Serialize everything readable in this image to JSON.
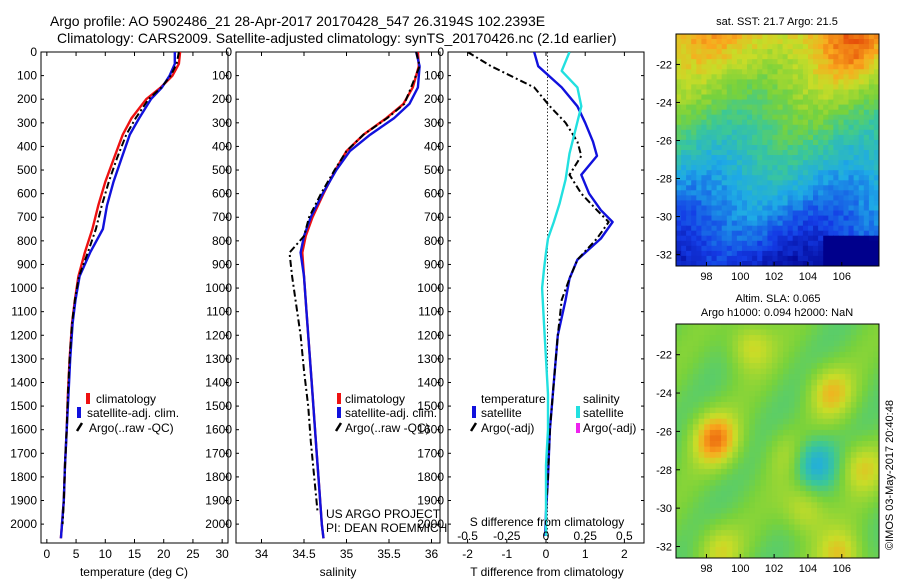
{
  "header": {
    "line1": "Argo profile: AO 5902486_21 28-Apr-2017 20170428_547 26.3194S 102.2393E",
    "line2": "Climatology: CARS2009. Satellite-adjusted climatology: synTS_20170426.nc (2.1d earlier)"
  },
  "footer_stamp": "©IMOS 03-May-2017 20:40:48",
  "colors": {
    "climatology": "#ee1111",
    "satellite": "#1111dd",
    "argo": "#000000",
    "salinity_satellite": "#22e0e0",
    "salinity_argo": "#ee22ee"
  },
  "chart_data": [
    {
      "type": "line",
      "name": "temperature-profile",
      "xlabel": "temperature (deg C)",
      "ylabel": "",
      "xlim": [
        -1,
        31
      ],
      "ylim": [
        2080,
        0
      ],
      "xticks": [
        0,
        5,
        10,
        15,
        20,
        25,
        30
      ],
      "yticks": [
        0,
        100,
        200,
        300,
        400,
        500,
        600,
        700,
        800,
        900,
        1000,
        1100,
        1200,
        1300,
        1400,
        1500,
        1600,
        1700,
        1800,
        1900,
        2000
      ],
      "legend_position": "lower-center",
      "legend": [
        "climatology",
        "satellite-adj. clim.",
        "Argo(..raw -QC)"
      ],
      "series": [
        {
          "name": "climatology",
          "color_key": "climatology",
          "x": [
            22.8,
            22.6,
            21.5,
            19.5,
            17,
            14.5,
            13,
            11.5,
            10,
            8.8,
            7.8,
            6.5,
            5.4,
            4.8,
            4.3,
            3.9,
            3.6,
            3.4,
            3.1,
            2.9,
            2.6,
            2.4
          ],
          "y": [
            0,
            50,
            100,
            150,
            200,
            280,
            350,
            450,
            550,
            650,
            750,
            850,
            950,
            1050,
            1150,
            1300,
            1450,
            1600,
            1750,
            1900,
            2000,
            2060
          ]
        },
        {
          "name": "satellite-adj. clim.",
          "color_key": "satellite",
          "x": [
            21.9,
            21.9,
            21,
            19.7,
            17.8,
            15.8,
            14.2,
            12.8,
            11.4,
            10.3,
            9.6,
            7.4,
            5.6,
            4.9,
            4.4,
            4,
            3.7,
            3.4,
            3.1,
            2.9,
            2.6,
            2.4
          ],
          "y": [
            0,
            50,
            100,
            150,
            200,
            280,
            350,
            450,
            550,
            650,
            750,
            850,
            950,
            1050,
            1150,
            1300,
            1450,
            1600,
            1750,
            1900,
            2000,
            2060
          ]
        },
        {
          "name": "Argo(..raw -QC)",
          "color_key": "argo",
          "dash": "dashdot",
          "x": [
            22.6,
            22.2,
            21.2,
            19.6,
            17.4,
            15.2,
            13.6,
            12,
            10.6,
            9.4,
            8.4,
            7,
            5.5,
            4.8,
            4.3,
            3.9,
            3.6,
            3.4,
            3.1,
            2.9,
            2.7
          ],
          "y": [
            0,
            50,
            100,
            150,
            200,
            280,
            350,
            450,
            550,
            650,
            750,
            850,
            950,
            1050,
            1150,
            1300,
            1450,
            1600,
            1750,
            1900,
            2000
          ]
        }
      ]
    },
    {
      "type": "line",
      "name": "salinity-profile",
      "xlabel": "salinity",
      "xlim": [
        33.7,
        36.1
      ],
      "ylim": [
        2080,
        0
      ],
      "xticks": [
        34,
        34.5,
        35,
        35.5,
        36
      ],
      "legend_position": "lower-center",
      "legend": [
        "climatology",
        "satellite-adj. clim.",
        "Argo(..raw -QC)"
      ],
      "annotation": [
        "US ARGO PROJECT",
        "PI: DEAN ROEMMICH"
      ],
      "series": [
        {
          "name": "climatology",
          "color_key": "climatology",
          "x": [
            35.84,
            35.85,
            35.78,
            35.67,
            35.47,
            35.2,
            35.0,
            34.87,
            34.73,
            34.6,
            34.52,
            34.48,
            34.5,
            34.53,
            34.56,
            34.59,
            34.62,
            34.65,
            34.68,
            34.71,
            34.73
          ],
          "y": [
            0,
            60,
            150,
            220,
            280,
            350,
            420,
            500,
            600,
            700,
            780,
            850,
            950,
            1100,
            1250,
            1400,
            1550,
            1700,
            1850,
            2000,
            2060
          ]
        },
        {
          "name": "satellite-adj. clim.",
          "color_key": "satellite",
          "x": [
            35.82,
            35.86,
            35.84,
            35.74,
            35.56,
            35.28,
            35.04,
            34.88,
            34.72,
            34.58,
            34.5,
            34.46,
            34.5,
            34.53,
            34.56,
            34.59,
            34.62,
            34.65,
            34.68,
            34.71,
            34.73
          ],
          "y": [
            0,
            60,
            150,
            220,
            280,
            350,
            420,
            500,
            600,
            700,
            780,
            850,
            950,
            1100,
            1250,
            1400,
            1550,
            1700,
            1850,
            2000,
            2060
          ]
        },
        {
          "name": "Argo(..raw -QC)",
          "color_key": "argo",
          "dash": "dashdot",
          "x": [
            35.82,
            35.86,
            35.76,
            35.68,
            35.48,
            35.2,
            35.0,
            34.86,
            34.7,
            34.56,
            34.5,
            34.33,
            34.36,
            34.4,
            34.46,
            34.5,
            34.55,
            34.58,
            34.62,
            34.66
          ],
          "y": [
            0,
            60,
            150,
            220,
            280,
            350,
            420,
            500,
            600,
            700,
            780,
            850,
            950,
            1050,
            1200,
            1350,
            1500,
            1650,
            1800,
            1950
          ]
        }
      ]
    },
    {
      "type": "line",
      "name": "difference-profile",
      "xlabel": "T difference from climatology",
      "xlabel_top": "S difference from climatology",
      "xlim": [
        -2.5,
        2.5
      ],
      "ylim": [
        2080,
        0
      ],
      "xticks": [
        -2,
        -1,
        0,
        1,
        2
      ],
      "top_xticks": [
        -0.5,
        -0.25,
        0,
        0.25,
        0.5
      ],
      "legend_position": "lower-center",
      "legend_headers": [
        "temperature",
        "salinity"
      ],
      "legend": [
        {
          "label": "satellite",
          "color_key": "satellite"
        },
        {
          "label": "Argo(-adj)",
          "color_key": "argo"
        },
        {
          "label": "satellite",
          "color_key": "salinity_satellite"
        },
        {
          "label": "Argo(-adj)",
          "color_key": "salinity_argo"
        }
      ],
      "series": [
        {
          "name": "T satellite",
          "color_key": "satellite",
          "x": [
            -0.3,
            -0.2,
            0.4,
            0.8,
            1.0,
            1.2,
            1.3,
            0.9,
            1.1,
            1.4,
            1.7,
            1.4,
            0.8,
            0.6,
            0.5,
            0.3,
            0.2,
            0.1,
            0.05,
            0.0,
            -0.02
          ],
          "y": [
            0,
            60,
            150,
            230,
            300,
            380,
            440,
            520,
            600,
            670,
            720,
            790,
            880,
            960,
            1050,
            1200,
            1400,
            1600,
            1800,
            1950,
            2050
          ]
        },
        {
          "name": "T Argo(-adj)",
          "color_key": "argo",
          "dash": "dashdot",
          "x": [
            -2.0,
            -1.4,
            -0.3,
            0.1,
            0.5,
            0.8,
            0.9,
            0.6,
            0.9,
            1.3,
            1.6,
            1.3,
            0.8,
            0.6,
            0.4,
            0.3,
            0.2,
            0.1,
            0.05,
            0.0
          ],
          "y": [
            0,
            60,
            150,
            230,
            300,
            380,
            440,
            520,
            600,
            670,
            720,
            790,
            880,
            960,
            1050,
            1200,
            1400,
            1600,
            1800,
            1950
          ]
        },
        {
          "name": "S satellite",
          "color_key": "salinity_satellite",
          "x": [
            0.6,
            0.4,
            0.8,
            0.9,
            0.75,
            0.6,
            0.5,
            0.35,
            0.2,
            0.05,
            0.0,
            -0.05,
            -0.1,
            -0.05,
            0.0,
            0.05,
            0.05,
            0.0,
            0.0,
            0.0
          ],
          "y": [
            0,
            80,
            150,
            230,
            330,
            430,
            540,
            640,
            720,
            790,
            850,
            920,
            1000,
            1150,
            1300,
            1450,
            1600,
            1750,
            1900,
            2050
          ]
        }
      ]
    },
    {
      "type": "heatmap",
      "name": "sst-map",
      "title": "sat. SST: 21.7  Argo: 21.5",
      "xticks": [
        98,
        100,
        102,
        104,
        106
      ],
      "yticks": [
        -22,
        -24,
        -26,
        -28,
        -30,
        -32
      ],
      "xlim": [
        96.2,
        108.2
      ],
      "ylim": [
        -32.6,
        -20.4
      ]
    },
    {
      "type": "heatmap",
      "name": "sla-map",
      "title_lines": [
        "Altim. SLA: 0.065",
        "Argo h1000: 0.094  h2000: NaN"
      ],
      "xticks": [
        98,
        100,
        102,
        104,
        106
      ],
      "yticks": [
        -22,
        -24,
        -26,
        -28,
        -30,
        -32
      ],
      "xlim": [
        96.2,
        108.2
      ],
      "ylim": [
        -32.6,
        -20.4
      ]
    }
  ]
}
